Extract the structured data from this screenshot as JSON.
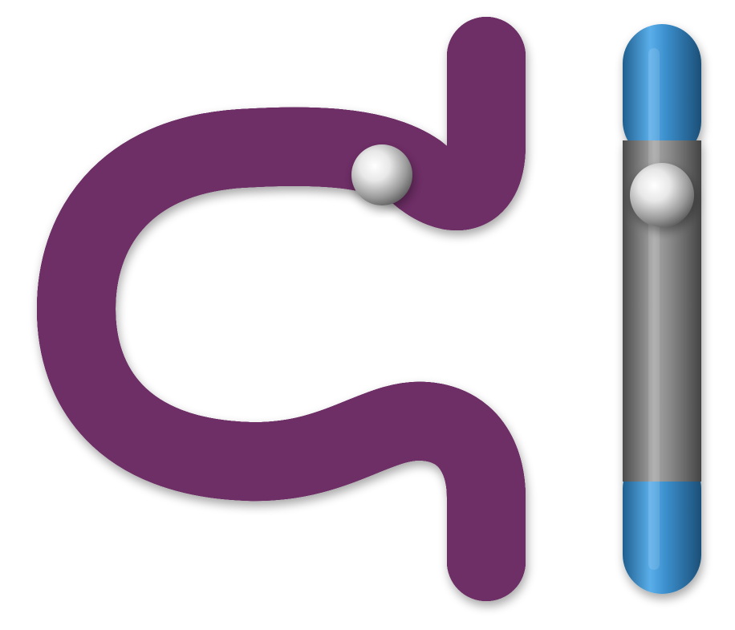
{
  "colors": {
    "background": "#ffffff",
    "curved_tube": "#c766b8",
    "straight_tube_ends": "#3b8fcc",
    "straight_tube_middle": "#8a8a8a",
    "spheres": "#e6e6e6"
  },
  "objects": [
    {
      "name": "curved-magenta-tube-icon"
    },
    {
      "name": "straight-segmented-rod-icon"
    },
    {
      "name": "silver-sphere-icon"
    }
  ]
}
